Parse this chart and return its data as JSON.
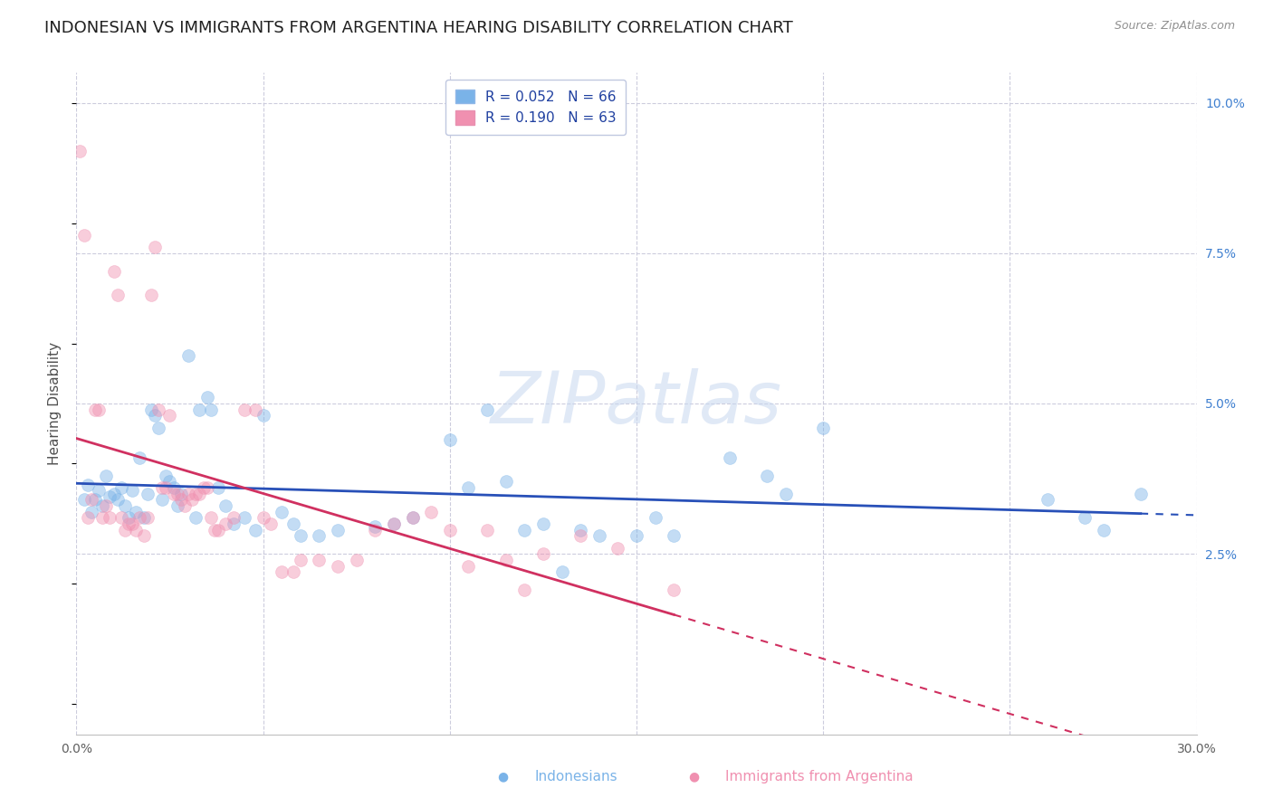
{
  "title": "INDONESIAN VS IMMIGRANTS FROM ARGENTINA HEARING DISABILITY CORRELATION CHART",
  "source": "Source: ZipAtlas.com",
  "ylabel": "Hearing Disability",
  "xlabel_indonesians": "Indonesians",
  "xlabel_argentina": "Immigrants from Argentina",
  "watermark": "ZIPatlas",
  "legend": [
    {
      "label": "R = 0.052   N = 66",
      "color": "#a8c8f8"
    },
    {
      "label": "R = 0.190   N = 63",
      "color": "#f8a8c0"
    }
  ],
  "xlim": [
    0.0,
    0.3
  ],
  "ylim": [
    -0.005,
    0.105
  ],
  "yticks": [
    0.025,
    0.05,
    0.075,
    0.1
  ],
  "ytick_labels": [
    "2.5%",
    "5.0%",
    "7.5%",
    "10.0%"
  ],
  "xticks": [
    0.0,
    0.05,
    0.1,
    0.15,
    0.2,
    0.25,
    0.3
  ],
  "xtick_labels": [
    "0.0%",
    "",
    "",
    "",
    "",
    "",
    "30.0%"
  ],
  "blue_color": "#7ab3e8",
  "pink_color": "#f090b0",
  "blue_line_color": "#2850b8",
  "pink_line_color": "#d03060",
  "blue_points": [
    [
      0.002,
      0.034
    ],
    [
      0.003,
      0.0365
    ],
    [
      0.004,
      0.032
    ],
    [
      0.005,
      0.034
    ],
    [
      0.006,
      0.0355
    ],
    [
      0.007,
      0.033
    ],
    [
      0.008,
      0.038
    ],
    [
      0.009,
      0.0345
    ],
    [
      0.01,
      0.035
    ],
    [
      0.011,
      0.034
    ],
    [
      0.012,
      0.036
    ],
    [
      0.013,
      0.033
    ],
    [
      0.014,
      0.031
    ],
    [
      0.015,
      0.0355
    ],
    [
      0.016,
      0.032
    ],
    [
      0.017,
      0.041
    ],
    [
      0.018,
      0.031
    ],
    [
      0.019,
      0.035
    ],
    [
      0.02,
      0.049
    ],
    [
      0.021,
      0.048
    ],
    [
      0.022,
      0.046
    ],
    [
      0.023,
      0.034
    ],
    [
      0.024,
      0.038
    ],
    [
      0.025,
      0.037
    ],
    [
      0.026,
      0.036
    ],
    [
      0.027,
      0.033
    ],
    [
      0.028,
      0.035
    ],
    [
      0.03,
      0.058
    ],
    [
      0.032,
      0.031
    ],
    [
      0.033,
      0.049
    ],
    [
      0.035,
      0.051
    ],
    [
      0.036,
      0.049
    ],
    [
      0.038,
      0.036
    ],
    [
      0.04,
      0.033
    ],
    [
      0.042,
      0.03
    ],
    [
      0.045,
      0.031
    ],
    [
      0.048,
      0.029
    ],
    [
      0.05,
      0.048
    ],
    [
      0.055,
      0.032
    ],
    [
      0.058,
      0.03
    ],
    [
      0.06,
      0.028
    ],
    [
      0.065,
      0.028
    ],
    [
      0.07,
      0.029
    ],
    [
      0.08,
      0.0295
    ],
    [
      0.085,
      0.03
    ],
    [
      0.09,
      0.031
    ],
    [
      0.1,
      0.044
    ],
    [
      0.105,
      0.036
    ],
    [
      0.11,
      0.049
    ],
    [
      0.115,
      0.037
    ],
    [
      0.12,
      0.029
    ],
    [
      0.125,
      0.03
    ],
    [
      0.13,
      0.022
    ],
    [
      0.135,
      0.029
    ],
    [
      0.14,
      0.028
    ],
    [
      0.15,
      0.028
    ],
    [
      0.155,
      0.031
    ],
    [
      0.16,
      0.028
    ],
    [
      0.175,
      0.041
    ],
    [
      0.185,
      0.038
    ],
    [
      0.19,
      0.035
    ],
    [
      0.2,
      0.046
    ],
    [
      0.26,
      0.034
    ],
    [
      0.27,
      0.031
    ],
    [
      0.275,
      0.029
    ],
    [
      0.285,
      0.035
    ]
  ],
  "pink_points": [
    [
      0.001,
      0.092
    ],
    [
      0.002,
      0.078
    ],
    [
      0.003,
      0.031
    ],
    [
      0.004,
      0.034
    ],
    [
      0.005,
      0.049
    ],
    [
      0.006,
      0.049
    ],
    [
      0.007,
      0.031
    ],
    [
      0.008,
      0.033
    ],
    [
      0.009,
      0.031
    ],
    [
      0.01,
      0.072
    ],
    [
      0.011,
      0.068
    ],
    [
      0.012,
      0.031
    ],
    [
      0.013,
      0.029
    ],
    [
      0.014,
      0.03
    ],
    [
      0.015,
      0.03
    ],
    [
      0.016,
      0.029
    ],
    [
      0.017,
      0.031
    ],
    [
      0.018,
      0.028
    ],
    [
      0.019,
      0.031
    ],
    [
      0.02,
      0.068
    ],
    [
      0.021,
      0.076
    ],
    [
      0.022,
      0.049
    ],
    [
      0.023,
      0.036
    ],
    [
      0.024,
      0.036
    ],
    [
      0.025,
      0.048
    ],
    [
      0.026,
      0.035
    ],
    [
      0.027,
      0.035
    ],
    [
      0.028,
      0.034
    ],
    [
      0.029,
      0.033
    ],
    [
      0.03,
      0.035
    ],
    [
      0.031,
      0.034
    ],
    [
      0.032,
      0.035
    ],
    [
      0.033,
      0.035
    ],
    [
      0.034,
      0.036
    ],
    [
      0.035,
      0.036
    ],
    [
      0.036,
      0.031
    ],
    [
      0.037,
      0.029
    ],
    [
      0.038,
      0.029
    ],
    [
      0.04,
      0.03
    ],
    [
      0.042,
      0.031
    ],
    [
      0.045,
      0.049
    ],
    [
      0.048,
      0.049
    ],
    [
      0.05,
      0.031
    ],
    [
      0.052,
      0.03
    ],
    [
      0.055,
      0.022
    ],
    [
      0.058,
      0.022
    ],
    [
      0.06,
      0.024
    ],
    [
      0.065,
      0.024
    ],
    [
      0.07,
      0.023
    ],
    [
      0.075,
      0.024
    ],
    [
      0.08,
      0.029
    ],
    [
      0.085,
      0.03
    ],
    [
      0.09,
      0.031
    ],
    [
      0.095,
      0.032
    ],
    [
      0.1,
      0.029
    ],
    [
      0.105,
      0.023
    ],
    [
      0.11,
      0.029
    ],
    [
      0.115,
      0.024
    ],
    [
      0.12,
      0.019
    ],
    [
      0.125,
      0.025
    ],
    [
      0.135,
      0.028
    ],
    [
      0.145,
      0.026
    ],
    [
      0.16,
      0.019
    ]
  ],
  "blue_R": 0.052,
  "pink_R": 0.19,
  "blue_N": 66,
  "pink_N": 63,
  "background_color": "#ffffff",
  "grid_color": "#ccccdd",
  "title_fontsize": 13,
  "axis_label_fontsize": 11,
  "tick_fontsize": 10,
  "legend_fontsize": 11,
  "marker_size": 100,
  "marker_alpha": 0.45
}
